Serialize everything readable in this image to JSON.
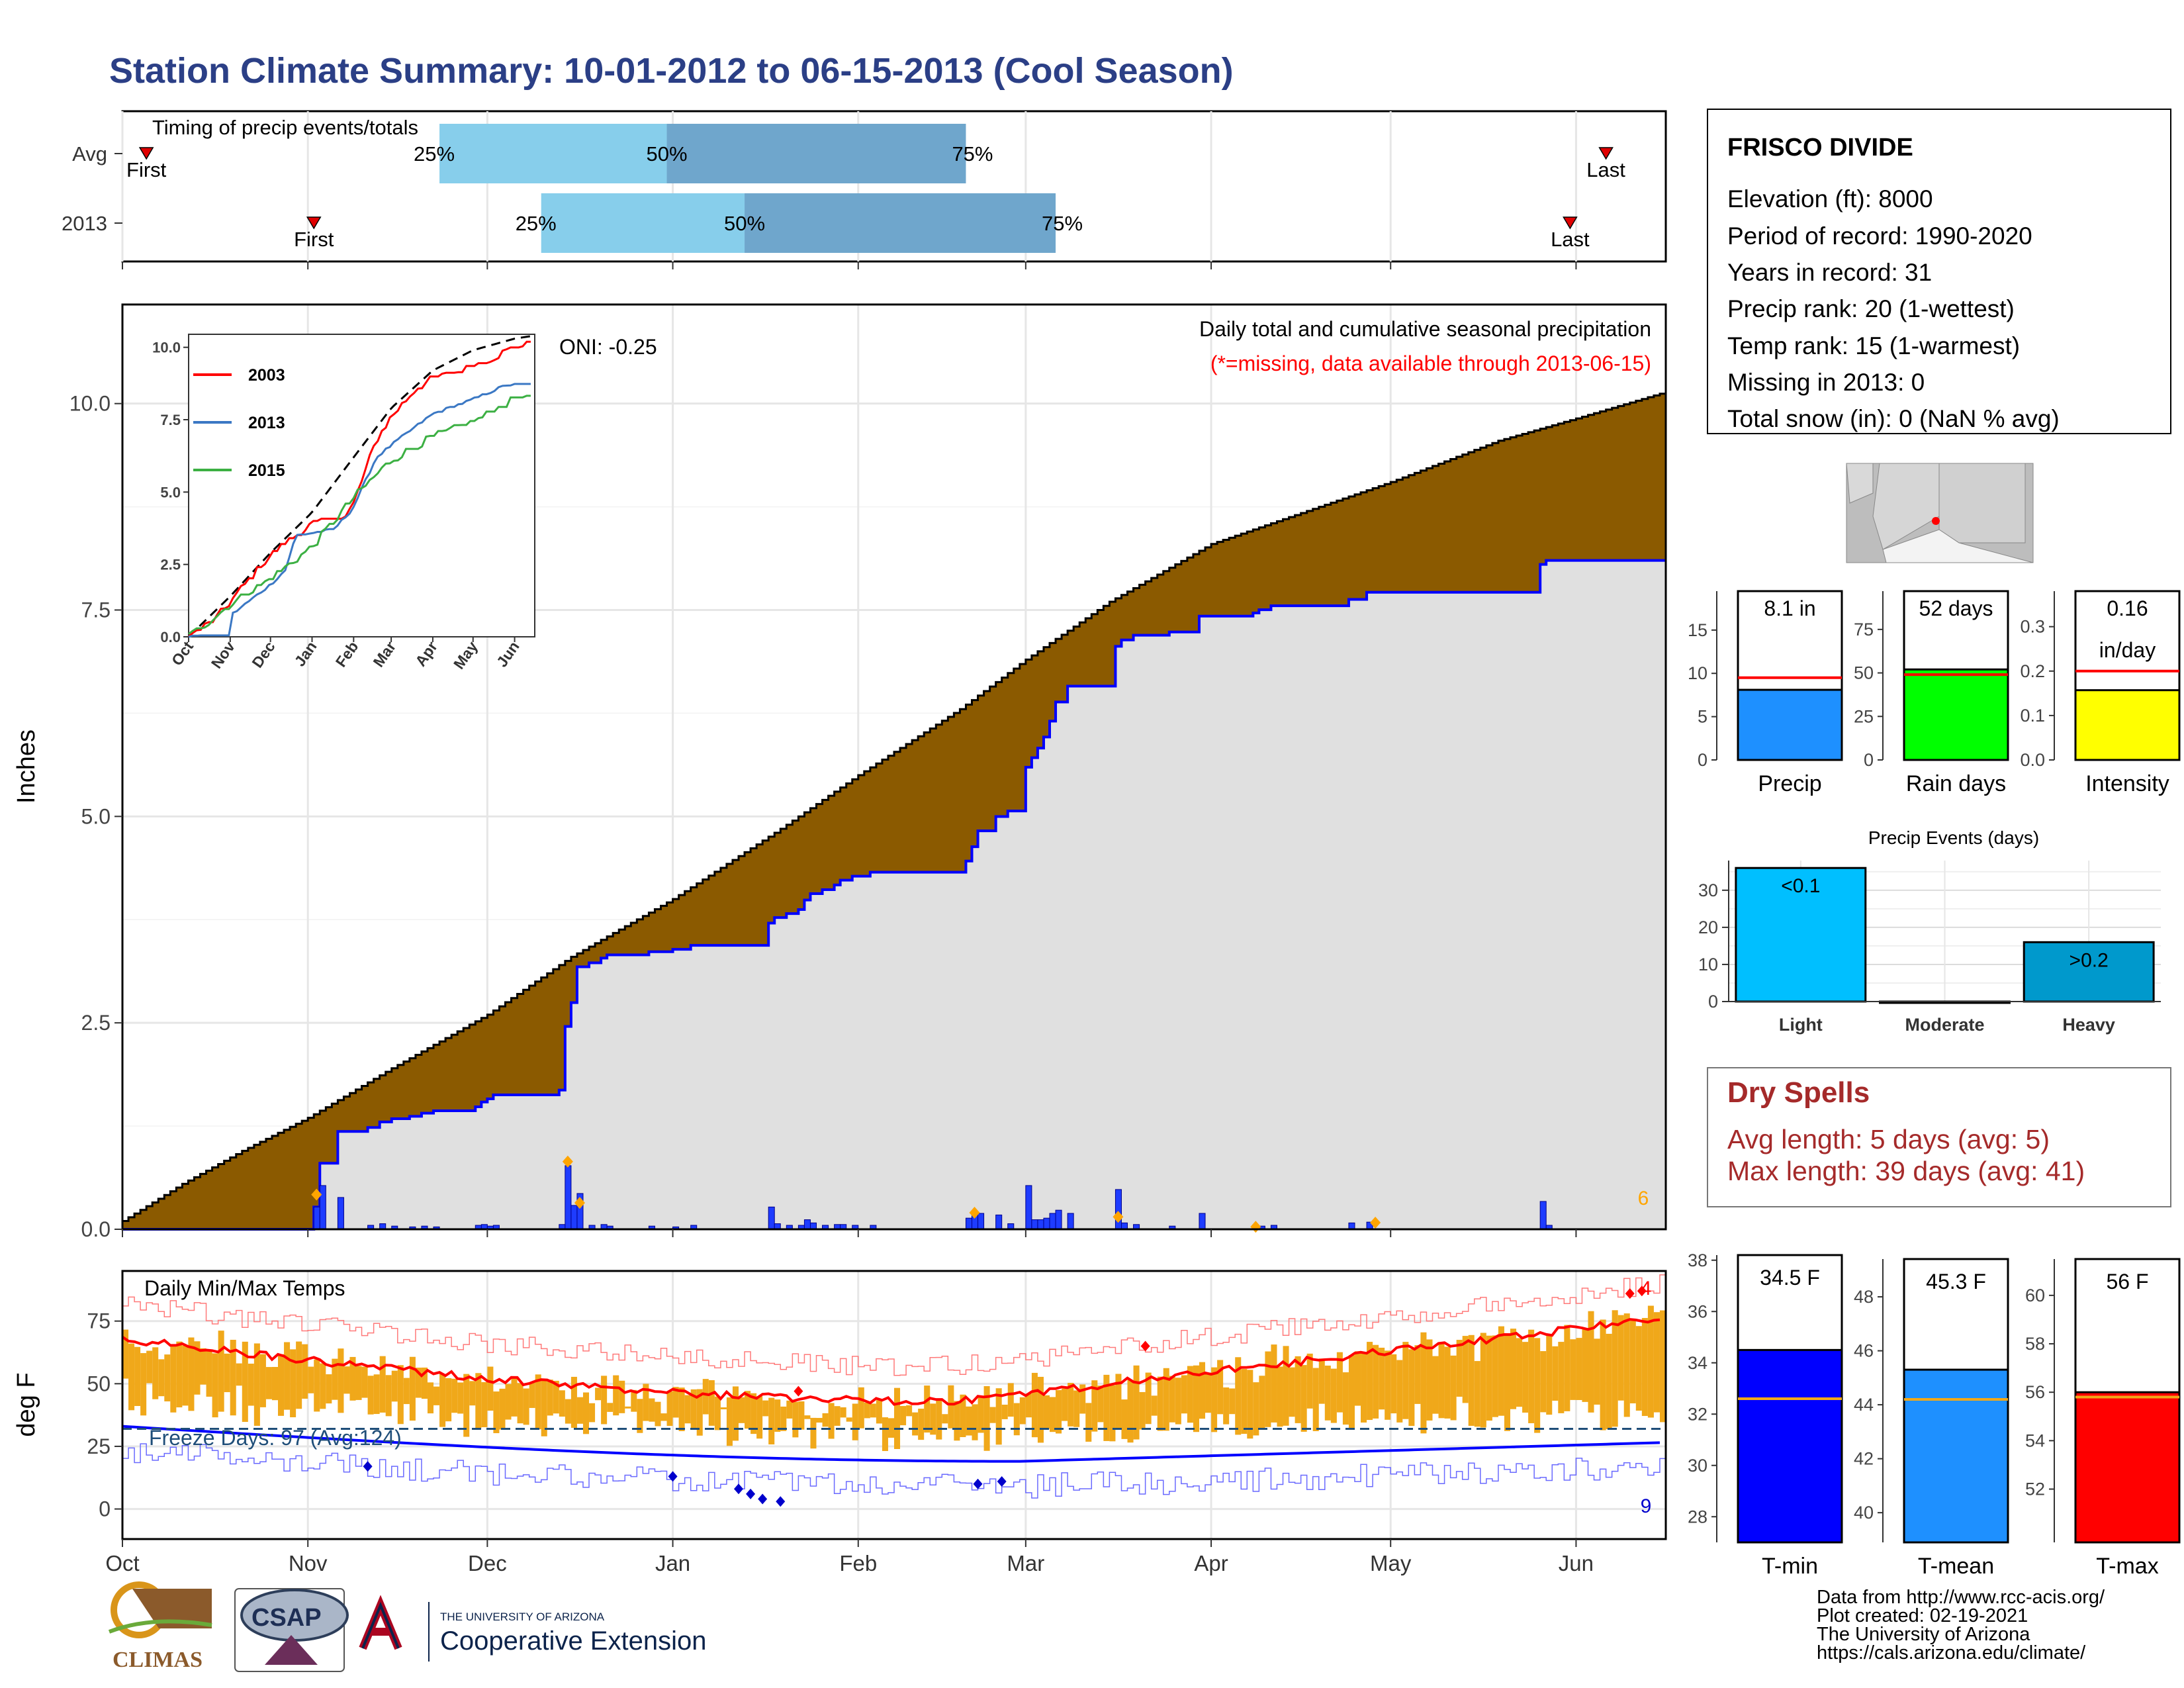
{
  "title": "Station Climate Summary: 10-01-2012 to 06-15-2013 (Cool Season)",
  "colors": {
    "title": "#2b3f86",
    "brown": "#8b5a00",
    "grey_fill": "#e0e0e0",
    "blue_line": "#0000ff",
    "orange": "#f4a60c",
    "red": "#ff0000",
    "dry_spell": "#a52a2a"
  },
  "station": {
    "name": "FRISCO DIVIDE",
    "lines": [
      "Elevation (ft): 8000",
      "Period of record: 1990-2020",
      "Years in record: 31",
      "Precip rank: 20 (1-wettest)",
      "Temp rank: 15 (1-warmest)",
      "Missing in 2013: 0",
      "Total snow (in): 0 (NaN % avg)"
    ]
  },
  "timing": {
    "title": "Timing of precip events/totals",
    "rows": [
      {
        "label": "Avg",
        "first_label": "First",
        "last_label": "Last",
        "first": "Oct 5",
        "last": "Jun 6",
        "q25": "Nov 23",
        "q50": "Dec 31",
        "q75": "Feb 19"
      },
      {
        "label": "2013",
        "first_label": "First",
        "last_label": "Last",
        "first": "Nov 2",
        "last": "May 31",
        "q25": "Dec 10",
        "q50": "Jan 13",
        "q75": "Mar 6"
      }
    ],
    "pct_labels": [
      "25%",
      "50%",
      "75%"
    ]
  },
  "precip_panel": {
    "title": "Daily total and cumulative seasonal precipitation",
    "subtitle": "(*=missing, data available through 2013-06-15)",
    "ylabel": "Inches",
    "oni": "ONI: -0.25",
    "corner_count": "6",
    "yticks": [
      "0.0",
      "2.5",
      "5.0",
      "7.5",
      "10.0"
    ],
    "ylim": [
      0,
      11.2
    ]
  },
  "inset": {
    "legend": [
      "2003",
      "2013",
      "2015"
    ],
    "legend_colors": [
      "#ff0000",
      "#3b78c4",
      "#3cb043"
    ],
    "yticks": [
      "0.0",
      "2.5",
      "5.0",
      "7.5",
      "10.0"
    ],
    "xticks": [
      "Oct",
      "Nov",
      "Dec",
      "Jan",
      "Feb",
      "Mar",
      "Apr",
      "May",
      "Jun"
    ]
  },
  "temp_panel": {
    "title": "Daily Min/Max Temps",
    "ylabel": "deg F",
    "freeze_text": "Freeze Days: 97 (Avg:124)",
    "yticks": [
      "0",
      "25",
      "50",
      "75"
    ],
    "ylim": [
      -12,
      95
    ],
    "count_top": "4",
    "count_bottom": "9"
  },
  "months": [
    "Oct",
    "Nov",
    "Dec",
    "Jan",
    "Feb",
    "Mar",
    "Apr",
    "May",
    "Jun"
  ],
  "mini_bars": [
    {
      "value_label": "8.1 in",
      "axis_label": "Precip",
      "color": "#1e90ff",
      "value": 8.1,
      "avg": 9.5,
      "ymax": 19.5,
      "yticks": [
        "0",
        "5",
        "10",
        "15"
      ],
      "tickvals": [
        0,
        5,
        10,
        15
      ]
    },
    {
      "value_label": "52 days",
      "axis_label": "Rain days",
      "color": "#00ff00",
      "value": 52,
      "avg": 49,
      "ymax": 97,
      "yticks": [
        "0",
        "25",
        "50",
        "75"
      ],
      "tickvals": [
        0,
        25,
        50,
        75
      ]
    },
    {
      "value_label": "0.16",
      "value_label2": "in/day",
      "axis_label": "Intensity",
      "color": "#ffff00",
      "value": 0.157,
      "avg": 0.2,
      "ymax": 0.38,
      "yticks": [
        "0.0",
        "0.1",
        "0.2",
        "0.3"
      ],
      "tickvals": [
        0,
        0.1,
        0.2,
        0.3
      ]
    }
  ],
  "events": {
    "title": "Precip Events (days)",
    "categories": [
      "Light",
      "Moderate",
      "Heavy"
    ],
    "values": [
      36,
      0,
      16
    ],
    "labels": [
      "<0.1",
      "",
      ">0.2"
    ],
    "colors": [
      "#00bfff",
      "#1e90ff",
      "#0099cc"
    ],
    "yticks": [
      "0",
      "10",
      "20",
      "30"
    ]
  },
  "dry_spells": {
    "title": "Dry Spells",
    "avg": "Avg length: 5 days (avg: 5)",
    "max": "Max length: 39 days (avg: 41)"
  },
  "temp_bars": [
    {
      "value_label": "34.5 F",
      "axis_label": "T-min",
      "color": "#0000ff",
      "value": 34.5,
      "avg": 32.6,
      "ymin": 27,
      "ymax": 38.2,
      "yticks": [
        "28",
        "30",
        "32",
        "34",
        "36",
        "38"
      ],
      "tickvals": [
        28,
        30,
        32,
        34,
        36,
        38
      ]
    },
    {
      "value_label": "45.3 F",
      "axis_label": "T-mean",
      "color": "#1e90ff",
      "value": 45.3,
      "avg": 44.2,
      "ymin": 38.9,
      "ymax": 49.4,
      "yticks": [
        "40",
        "42",
        "44",
        "46",
        "48"
      ],
      "tickvals": [
        40,
        42,
        44,
        46,
        48
      ]
    },
    {
      "value_label": "56 F",
      "axis_label": "T-max",
      "color": "#ff0000",
      "value": 56,
      "avg": 55.8,
      "ymin": 49.8,
      "ymax": 61.5,
      "yticks": [
        "52",
        "54",
        "56",
        "58",
        "60"
      ],
      "tickvals": [
        52,
        54,
        56,
        58,
        60
      ]
    }
  ],
  "footer": {
    "lines": [
      "Data from http://www.rcc-acis.org/",
      "Plot created: 02-19-2021",
      "The University of Arizona",
      "https://cals.arizona.edu/climate/"
    ],
    "logo_climas": "CLIMAS",
    "logo_csap": "CSAP",
    "ua_small": "THE UNIVERSITY OF ARIZONA",
    "ua_big": "Cooperative Extension"
  }
}
